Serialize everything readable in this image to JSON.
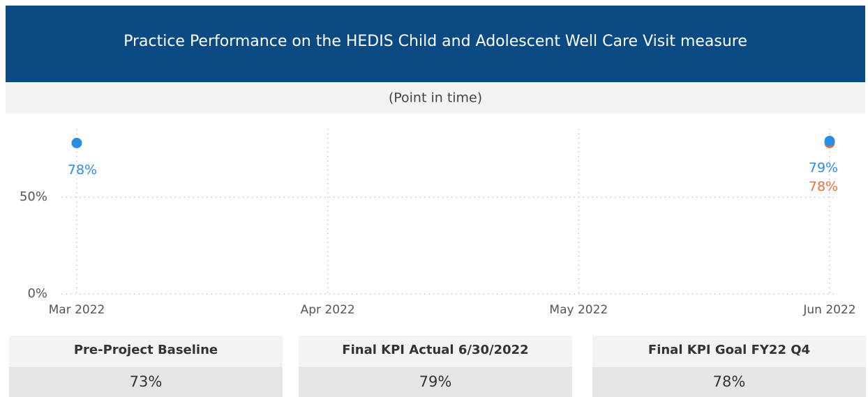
{
  "chart_data": {
    "type": "scatter",
    "title": "Practice Performance on the HEDIS Child and Adolescent Well Care Visit measure",
    "subtitle": "(Point in time)",
    "categories": [
      "Mar 2022",
      "Apr 2022",
      "May 2022",
      "Jun 2022"
    ],
    "series": [
      {
        "color": "#e8703a",
        "values": [
          null,
          null,
          null,
          78
        ],
        "value_labels": [
          null,
          null,
          null,
          "78%"
        ]
      },
      {
        "color": "#2b8ce6",
        "values": [
          78,
          null,
          null,
          79
        ],
        "value_labels": [
          "78%",
          null,
          null,
          "79%"
        ]
      }
    ],
    "ylim": [
      0,
      90
    ],
    "yticks": [
      {
        "value": 0,
        "label": "0%"
      },
      {
        "value": 50,
        "label": "50%"
      }
    ],
    "grid": true
  },
  "cards": [
    {
      "label": "Pre-Project Baseline",
      "value": "73%"
    },
    {
      "label": "Final KPI Actual 6/30/2022",
      "value": "79%"
    },
    {
      "label": "Final KPI Goal FY22 Q4",
      "value": "78%"
    }
  ]
}
